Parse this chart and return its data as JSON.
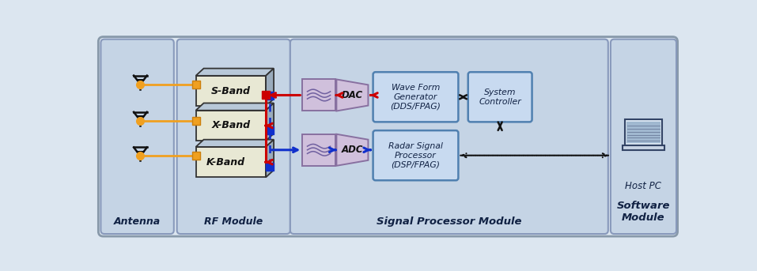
{
  "fig_width": 9.57,
  "fig_height": 3.43,
  "bg_outer": "#dce6f0",
  "bg_panel": "#ccd9e8",
  "bg_inner_panel": "#c5d4e5",
  "panel_edge": "#9aaabb",
  "box_3d_face": "#e8e8d4",
  "box_3d_top": "#b8c8d8",
  "box_3d_side": "#9aabbc",
  "filter_color": "#d0c0dc",
  "filter_edge": "#8870a0",
  "proc_color": "#c8daf0",
  "proc_edge": "#5080b0",
  "orange_wire": "#f0a020",
  "red_arrow": "#cc0000",
  "blue_arrow": "#1030cc",
  "blue_sq": "#1030cc",
  "black_arrow": "#111111",
  "label_antenna": "Antenna",
  "label_rf": "RF Module",
  "label_signal": "Signal Processor Module",
  "label_software": "Software\nModule",
  "label_host": "Host PC",
  "label_sband": "S-Band",
  "label_xband": "X-Band",
  "label_kband": "K-Band",
  "label_dac": "DAC",
  "label_adc": "ADC",
  "label_wfg": "Wave Form\nGenerator\n(DDS/FPAG)",
  "label_sysctrl": "System\nController",
  "label_rsp": "Radar Signal\nProcessor\n(DSP/FPAG)"
}
